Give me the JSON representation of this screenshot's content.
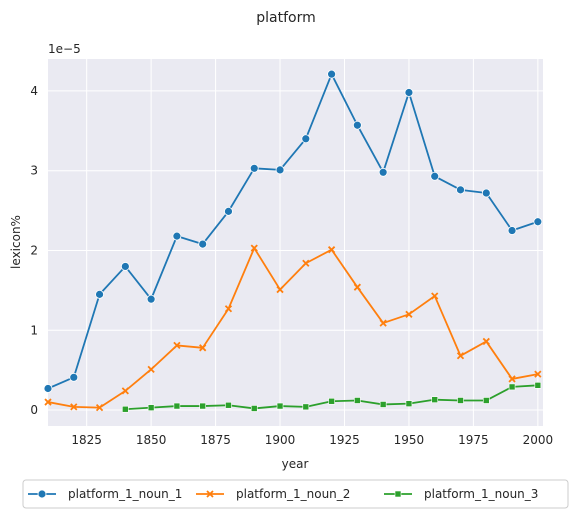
{
  "chart_data": {
    "type": "line",
    "title": "platform",
    "xlabel": "year",
    "ylabel": "lexicon%",
    "y_scale_label": "1e−5",
    "xlim": [
      1810,
      2002
    ],
    "ylim": [
      -0.2,
      4.4
    ],
    "x_ticks": [
      1825,
      1850,
      1875,
      1900,
      1925,
      1950,
      1975,
      2000
    ],
    "y_ticks": [
      0,
      1,
      2,
      3,
      4
    ],
    "grid": true,
    "legend_position": "bottom",
    "series": [
      {
        "name": "platform_1_noun_1",
        "color": "#1f77b4",
        "marker": "circle",
        "x": [
          1810,
          1820,
          1830,
          1840,
          1850,
          1860,
          1870,
          1880,
          1890,
          1900,
          1910,
          1920,
          1930,
          1940,
          1950,
          1960,
          1970,
          1980,
          1990,
          2000
        ],
        "y": [
          0.27,
          0.41,
          1.45,
          1.8,
          1.39,
          2.18,
          2.08,
          2.49,
          3.03,
          3.01,
          3.4,
          4.21,
          3.57,
          2.98,
          3.98,
          2.93,
          2.76,
          2.72,
          2.25,
          2.36
        ]
      },
      {
        "name": "platform_1_noun_2",
        "color": "#ff7f0e",
        "marker": "x",
        "x": [
          1810,
          1820,
          1830,
          1840,
          1850,
          1860,
          1870,
          1880,
          1890,
          1900,
          1910,
          1920,
          1930,
          1940,
          1950,
          1960,
          1970,
          1980,
          1990,
          2000
        ],
        "y": [
          0.1,
          0.04,
          0.03,
          0.24,
          0.51,
          0.81,
          0.78,
          1.27,
          2.03,
          1.51,
          1.84,
          2.01,
          1.54,
          1.09,
          1.2,
          1.43,
          0.68,
          0.86,
          0.39,
          0.45
        ]
      },
      {
        "name": "platform_1_noun_3",
        "color": "#2ca02c",
        "marker": "square",
        "x": [
          1840,
          1850,
          1860,
          1870,
          1880,
          1890,
          1900,
          1910,
          1920,
          1930,
          1940,
          1950,
          1960,
          1970,
          1980,
          1990,
          2000
        ],
        "y": [
          0.01,
          0.03,
          0.05,
          0.05,
          0.06,
          0.02,
          0.05,
          0.04,
          0.11,
          0.12,
          0.07,
          0.08,
          0.13,
          0.12,
          0.12,
          0.29,
          0.31
        ]
      }
    ]
  }
}
